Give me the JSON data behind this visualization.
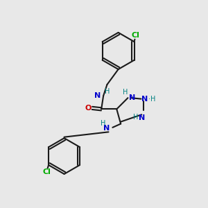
{
  "background_color": "#e8e8e8",
  "bond_color": "#1a1a1a",
  "nitrogen_color": "#0000cc",
  "oxygen_color": "#cc0000",
  "chlorine_color": "#00aa00",
  "nh_color": "#008080",
  "line_width": 1.5,
  "fig_size": [
    3.0,
    3.0
  ],
  "dpi": 100,
  "xlim": [
    0,
    10
  ],
  "ylim": [
    0,
    10
  ]
}
